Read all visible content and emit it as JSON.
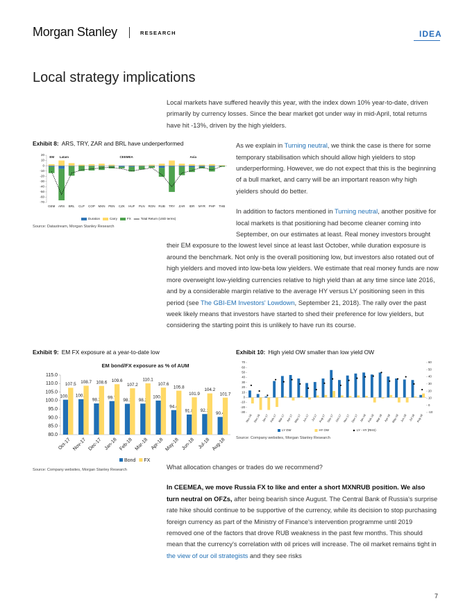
{
  "header": {
    "brand": "Morgan Stanley",
    "section": "RESEARCH",
    "tag": "IDEA"
  },
  "title": "Local strategy implications",
  "paragraphs": [
    {
      "runs": [
        {
          "text": "Local markets have suffered heavily this year, with the index down 10% year-to-date, driven primarily by currency losses. Since the bear market got under way in mid-April, total returns have hit -13%, driven by the high yielders."
        }
      ]
    },
    {
      "runs": [
        {
          "text": "As we explain in "
        },
        {
          "text": "Turning neutral",
          "link": true
        },
        {
          "text": ", we think the case is there for some temporary stabilisation which should allow high yielders to stop underperforming. However, we do not expect that this is the beginning of a bull market, and carry will be an important reason why high yielders should do better."
        }
      ]
    },
    {
      "runs": [
        {
          "text": "In addition to factors mentioned in "
        },
        {
          "text": "Turning neutral",
          "link": true
        },
        {
          "text": ", another positive for local markets is that positioning had become cleaner coming into September, on our estimates at least. Real money investors brought their EM exposure to the lowest level since at least last October, while duration exposure is around the benchmark. Not only is the overall positioning low, but investors also rotated out of high yielders and moved into low-beta low yielders. We estimate that real money funds are now more overweight low-yielding currencies relative to high yield than at any time since late 2016, and by a considerable margin relative to the average HY versus LY positioning seen in this period (see "
        },
        {
          "text": "The GBI-EM Investors' Lowdown",
          "link": true
        },
        {
          "text": ", September 21, 2018). The rally over the past week likely means that investors have started to shed their preference for low yielders, but considering the starting point this is unlikely to have run its course."
        }
      ]
    },
    {
      "runs": [
        {
          "text": "What allocation changes or trades do we recommend?"
        }
      ]
    },
    {
      "runs": [
        {
          "text": "In CEEMEA, we move Russia FX to like and enter a short MXNRUB position. We also turn neutral on OFZs,",
          "bold": true
        },
        {
          "text": " after being bearish since August. The Central Bank of Russia's surprise rate hike should continue to be supportive of the currency, while its decision to stop purchasing foreign currency as part of the Ministry of Finance's intervention programme until 2019 removed one of the factors that drove RUB weakness in the past few months. This should mean that the currency's correlation with oil prices will increase. The oil market remains tight in "
        },
        {
          "text": "the view of our oil strategists",
          "link": true
        },
        {
          "text": " and they see risks"
        }
      ]
    }
  ],
  "page_number": "7",
  "chart_data": [
    {
      "type": "stacked-bar",
      "exhibit": "Exhibit 8:",
      "caption": "ARS, TRY, ZAR and BRL have underperformed",
      "source": "Source: Datastream, Morgan Stanley Research",
      "groups": [
        "EM",
        "Latam",
        "CEEMEA",
        "Asia"
      ],
      "categories": [
        "GEM",
        "ARS",
        "BRL",
        "CLP",
        "COP",
        "MXN",
        "PEN",
        "CZK",
        "HUF",
        "PLN",
        "RON",
        "RUB",
        "TRY",
        "ZAR",
        "IDR",
        "MYR",
        "PHP",
        "THB"
      ],
      "series": [
        {
          "name": "Duration",
          "type": "bar",
          "color": "#2f75b5",
          "values": [
            -2,
            -6,
            -1,
            0,
            -1,
            -1,
            -1,
            -2,
            -2,
            -1,
            -1,
            -4,
            -2,
            -2,
            -3,
            -2,
            -2,
            0
          ]
        },
        {
          "name": "Carry",
          "type": "bar",
          "color": "#ffd966",
          "values": [
            3,
            10,
            5,
            2,
            3,
            4,
            2,
            0,
            1,
            1,
            2,
            4,
            10,
            4,
            3,
            2,
            3,
            1
          ]
        },
        {
          "name": "FX",
          "type": "bar",
          "color": "#4ea24e",
          "values": [
            -12,
            -60,
            -18,
            -10,
            -8,
            -7,
            -4,
            -3,
            -9,
            -6,
            -3,
            -17,
            -48,
            -16,
            -9,
            -3,
            -9,
            -2
          ]
        },
        {
          "name": "Total Return (USD terms)",
          "type": "line",
          "color": "#000000",
          "values": [
            -11,
            -55,
            -14,
            -8,
            -6,
            -4,
            -3,
            -6,
            -10,
            -7,
            -4,
            -17,
            -40,
            -14,
            -9,
            -3,
            -8,
            -1
          ]
        }
      ],
      "ylim": [
        -70,
        20
      ],
      "yticks": [
        20,
        10,
        0,
        -10,
        -20,
        -30,
        -40,
        -50,
        -60,
        -70
      ]
    },
    {
      "type": "bar",
      "exhibit": "Exhibit 9:",
      "caption": "EM FX exposure at a year-to-date low",
      "title": "EM bond/FX exposure as % of AUM",
      "source": "Source: Company websites, Morgan Stanley Research",
      "categories": [
        "Oct-17",
        "Nov-17",
        "Dec-17",
        "Jan-18",
        "Feb-18",
        "Mar-18",
        "Apr-18",
        "May-18",
        "Jun-18",
        "Jul-18",
        "Aug-18"
      ],
      "series": [
        {
          "name": "Bond",
          "color": "#1f6fb5",
          "values": [
            100.5,
            100.8,
            98.3,
            99.7,
            98.1,
            98.2,
            100.0,
            94.4,
            91.8,
            92.1,
            90.4
          ],
          "value_labels": [
            "100.5",
            "100.8",
            "98.3",
            "99.7",
            "98.1",
            "98.2",
            "100.0",
            "94.4",
            "91.8",
            "92.1",
            "90.4"
          ]
        },
        {
          "name": "FX",
          "color": "#ffd966",
          "values": [
            107.5,
            108.7,
            108.6,
            109.6,
            107.2,
            110.1,
            107.6,
            105.8,
            101.9,
            104.2,
            101.7
          ],
          "value_labels": [
            "107.5",
            "108.7",
            "108.6",
            "109.6",
            "107.2",
            "110.1",
            "107.6",
            "105.8",
            "101.9",
            "104.2",
            "101.7"
          ]
        }
      ],
      "ylim": [
        80,
        115
      ],
      "yticks": [
        {
          "value": 115,
          "label": "115.0"
        },
        {
          "value": 110,
          "label": "110.0"
        },
        {
          "value": 105,
          "label": "105.0"
        },
        {
          "value": 100,
          "label": "100.0"
        },
        {
          "value": 95,
          "label": "95.0"
        },
        {
          "value": 90,
          "label": "90.0"
        },
        {
          "value": 85,
          "label": "85.0"
        },
        {
          "value": 80,
          "label": "80.0"
        }
      ]
    },
    {
      "type": "bar",
      "exhibit": "Exhibit 10:",
      "caption": "High yield OW smaller than low yield OW",
      "source": "Source: Company websites, Morgan Stanley Research",
      "categories": [
        "Nov-16",
        "Dec-16",
        "Jan-17",
        "Feb-17",
        "Mar-17",
        "Apr-17",
        "May-17",
        "Jun-17",
        "Jul-17",
        "Aug-17",
        "Sep-17",
        "Oct-17",
        "Nov-17",
        "Dec-17",
        "Jan-18",
        "Feb-18",
        "Mar-18",
        "Apr-18",
        "May-18",
        "Jun-18",
        "Jul-18",
        "Aug-18"
      ],
      "series": [
        {
          "name": "LY OW",
          "color": "#1f6fb5",
          "values": [
            14,
            7,
            2,
            33,
            43,
            45,
            38,
            29,
            31,
            38,
            55,
            35,
            44,
            48,
            50,
            46,
            50,
            42,
            38,
            36,
            35,
            5
          ]
        },
        {
          "name": "HY OW",
          "color": "#ffd966",
          "values": [
            -12,
            -25,
            -25,
            -19,
            2,
            -6,
            3,
            -4,
            4,
            5,
            13,
            4,
            3,
            4,
            3,
            -10,
            -2,
            5,
            -10,
            -10,
            2,
            8
          ]
        },
        {
          "name": "LY - HY (RHS)",
          "type": "dot",
          "axis": "y2",
          "color": "#000000",
          "values": [
            28,
            20,
            14,
            36,
            33,
            36,
            30,
            24,
            22,
            31,
            37,
            28,
            35,
            38,
            40,
            41,
            46,
            34,
            37,
            40,
            30,
            22
          ]
        }
      ],
      "ylim": [
        -30,
        70
      ],
      "yticks": [
        70,
        60,
        50,
        40,
        30,
        20,
        10,
        0,
        -10,
        -20,
        -30
      ],
      "y2lim": [
        -10,
        60
      ],
      "y2ticks": [
        60,
        50,
        40,
        30,
        20,
        10,
        0,
        -10
      ]
    }
  ]
}
